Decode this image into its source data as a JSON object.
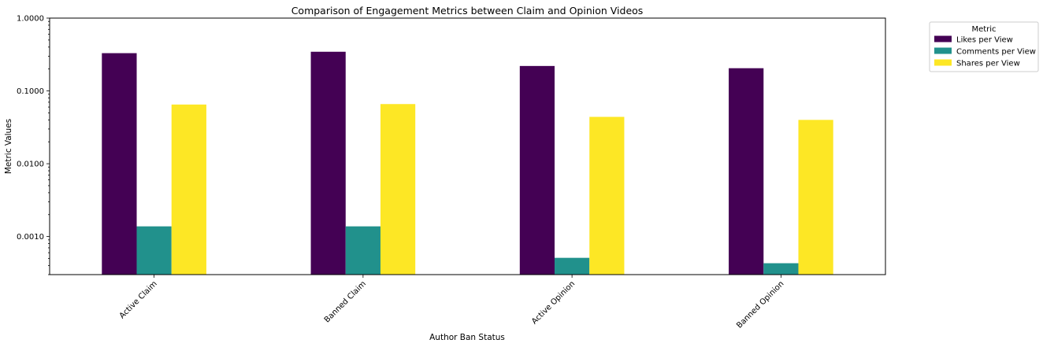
{
  "chart_data": {
    "type": "bar",
    "title": "Comparison of Engagement Metrics between Claim and Opinion Videos",
    "xlabel": "Author Ban Status",
    "ylabel": "Metric Values",
    "yscale": "log",
    "ylim": [
      0.0003,
      1.0
    ],
    "yticks": [
      {
        "value": 0.001,
        "label": "0.0010"
      },
      {
        "value": 0.01,
        "label": "0.0100"
      },
      {
        "value": 0.1,
        "label": "0.1000"
      },
      {
        "value": 1.0,
        "label": "1.0000"
      }
    ],
    "categories": [
      "Active Claim",
      "Banned Claim",
      "Active Opinion",
      "Banned Opinion"
    ],
    "series": [
      {
        "name": "Likes per View",
        "color": "#440154",
        "values": [
          0.33,
          0.345,
          0.22,
          0.205
        ]
      },
      {
        "name": "Comments per View",
        "color": "#21918c",
        "values": [
          0.00138,
          0.00138,
          0.00051,
          0.00043
        ]
      },
      {
        "name": "Shares per View",
        "color": "#fde725",
        "values": [
          0.065,
          0.066,
          0.044,
          0.04
        ]
      }
    ],
    "legend": {
      "title": "Metric",
      "position": "outside-top-right"
    },
    "grid": false
  }
}
